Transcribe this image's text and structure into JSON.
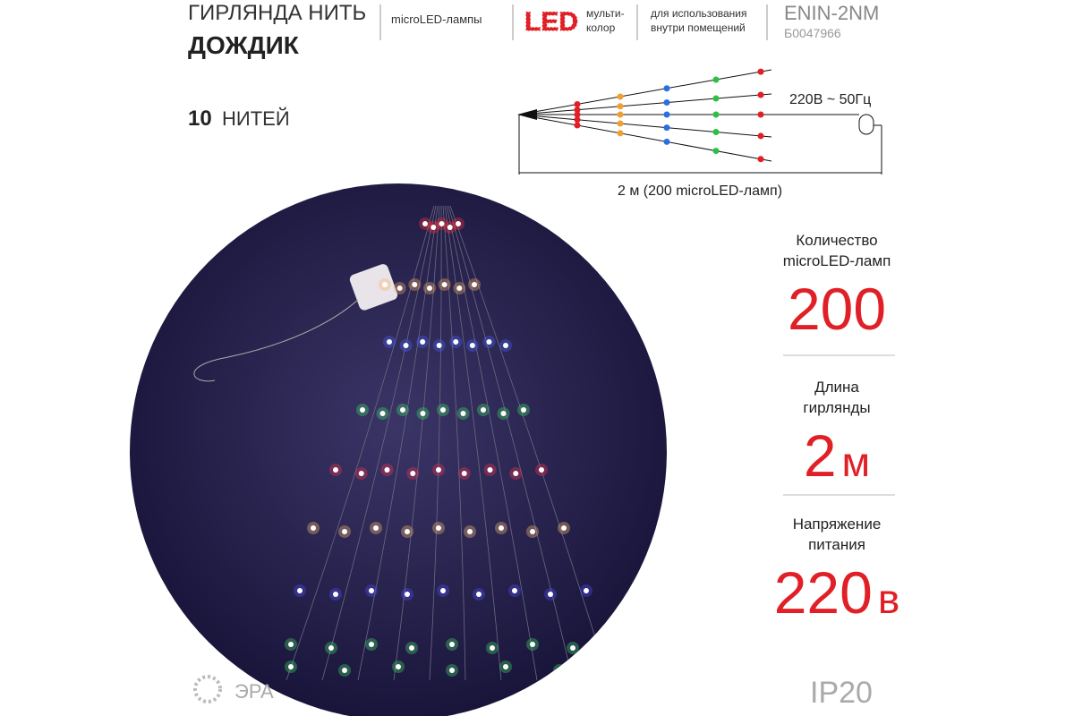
{
  "header": {
    "title_line1": "ГИРЛЯНДА НИТЬ",
    "title_line2": "ДОЖДИК",
    "lamp_type": "microLED-лампы",
    "led_badge": "LED",
    "color_line1": "мульти-",
    "color_line2": "колор",
    "usage_line1": "для использования",
    "usage_line2": "внутри помещений",
    "model": "ENIN-2NM",
    "article": "Б0047966"
  },
  "threads": {
    "count": 10,
    "label": "НИТЕЙ"
  },
  "diagram": {
    "power": "220В ~ 50Гц",
    "length": "2 м (200 microLED-ламп)"
  },
  "specs": [
    {
      "label_line1": "Количество",
      "label_line2": "microLED-ламп",
      "value": 200
    },
    {
      "label_line1": "Длина",
      "label_line2": "гирлянды",
      "value": 2,
      "unit": "м"
    },
    {
      "label_line1": "Напряжение",
      "label_line2": "питания",
      "value": 220,
      "unit": "в"
    }
  ],
  "brand": "ЭРА",
  "rating": "IP20"
}
